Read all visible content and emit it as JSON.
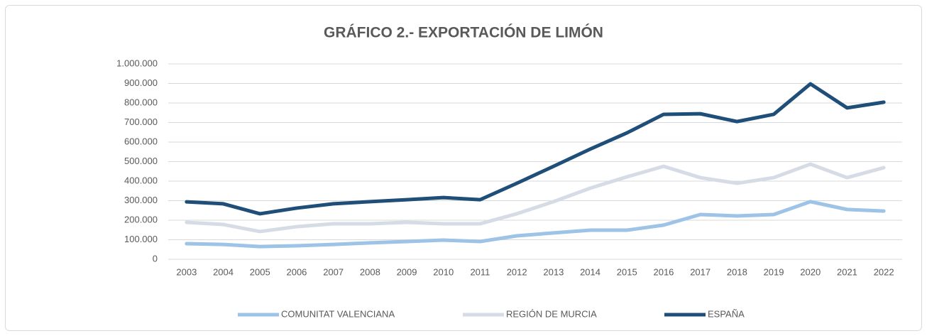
{
  "chart_data": {
    "type": "line",
    "title": "GRÁFICO 2.- EXPORTACIÓN DE LIMÓN",
    "categories": [
      "2003",
      "2004",
      "2005",
      "2006",
      "2007",
      "2008",
      "2009",
      "2010",
      "2011",
      "2012",
      "2013",
      "2014",
      "2015",
      "2016",
      "2017",
      "2018",
      "2019",
      "2020",
      "2021",
      "2022"
    ],
    "series": [
      {
        "name": "COMUNITAT VALENCIANA",
        "color": "#9dc3e6",
        "values": [
          80000,
          76000,
          65000,
          69000,
          76000,
          84000,
          91000,
          98000,
          91000,
          120000,
          135000,
          149000,
          149000,
          175000,
          229000,
          222000,
          229000,
          295000,
          255000,
          247000
        ]
      },
      {
        "name": "REGIÓN DE MURCIA",
        "color": "#d6dce5",
        "values": [
          189000,
          178000,
          142000,
          167000,
          182000,
          182000,
          189000,
          182000,
          182000,
          233000,
          295000,
          364000,
          422000,
          476000,
          418000,
          389000,
          418000,
          487000,
          418000,
          469000
        ]
      },
      {
        "name": "ESPAÑA",
        "color": "#1f4e79",
        "values": [
          294000,
          284000,
          233000,
          262000,
          284000,
          295000,
          305000,
          316000,
          305000,
          389000,
          476000,
          564000,
          647000,
          742000,
          745000,
          705000,
          742000,
          898000,
          775000,
          804000
        ]
      }
    ],
    "ylim": [
      0,
      1000000
    ],
    "yticks": [
      0,
      {
        "value": 100000,
        "label": "100.000"
      },
      {
        "value": 200000,
        "label": "200.000"
      },
      {
        "value": 300000,
        "label": "300.000"
      },
      {
        "value": 400000,
        "label": "400.000"
      },
      {
        "value": 500000,
        "label": "500.000"
      },
      {
        "value": 600000,
        "label": "600.000"
      },
      {
        "value": 700000,
        "label": "700.000"
      },
      {
        "value": 800000,
        "label": "800.000"
      },
      {
        "value": 900000,
        "label": "900.000"
      },
      {
        "value": 1000000,
        "label": "1.000.000"
      }
    ],
    "grid": true
  }
}
